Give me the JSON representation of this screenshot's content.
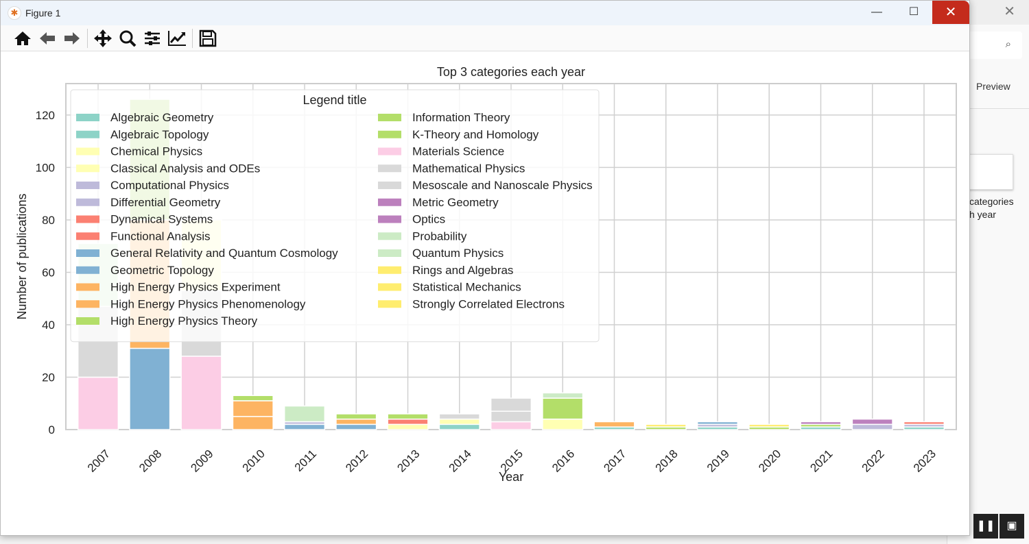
{
  "window": {
    "title": "Figure 1",
    "minimize": "—",
    "maximize": "☐",
    "close": "✕"
  },
  "background_window": {
    "preview_label": "Preview",
    "thumbnail_caption": "categories\nh year",
    "close": "✕",
    "search_icon": "⌕"
  },
  "toolbar": [
    {
      "name": "home-icon"
    },
    {
      "name": "back-arrow-icon"
    },
    {
      "name": "forward-arrow-icon"
    },
    {
      "name": "pan-icon"
    },
    {
      "name": "zoom-icon"
    },
    {
      "name": "configure-subplots-icon"
    },
    {
      "name": "edit-axis-icon"
    },
    {
      "name": "save-icon"
    }
  ],
  "chart_data": {
    "type": "bar",
    "stacked": true,
    "title": "Top 3 categories each year",
    "xlabel": "Year",
    "ylabel": "Number of publications",
    "ylim": [
      0,
      132
    ],
    "yticks": [
      0,
      20,
      40,
      60,
      80,
      100,
      120
    ],
    "grid": true,
    "categories": [
      "2007",
      "2008",
      "2009",
      "2010",
      "2011",
      "2012",
      "2013",
      "2014",
      "2015",
      "2016",
      "2017",
      "2018",
      "2019",
      "2020",
      "2021",
      "2022",
      "2023"
    ],
    "legend": {
      "title": "Legend title",
      "placement": "upper-left",
      "entries": [
        {
          "label": "Algebraic Geometry",
          "color": "#8dd3c7"
        },
        {
          "label": "Algebraic Topology",
          "color": "#8dd3c7"
        },
        {
          "label": "Chemical Physics",
          "color": "#ffffb3"
        },
        {
          "label": "Classical Analysis and ODEs",
          "color": "#ffffb3"
        },
        {
          "label": "Computational Physics",
          "color": "#bebada"
        },
        {
          "label": "Differential Geometry",
          "color": "#bebada"
        },
        {
          "label": "Dynamical Systems",
          "color": "#fb8072"
        },
        {
          "label": "Functional Analysis",
          "color": "#fb8072"
        },
        {
          "label": "General Relativity and Quantum Cosmology",
          "color": "#80b1d3"
        },
        {
          "label": "Geometric Topology",
          "color": "#80b1d3"
        },
        {
          "label": "High Energy Physics Experiment",
          "color": "#fdb462"
        },
        {
          "label": "High Energy Physics Phenomenology",
          "color": "#fdb462"
        },
        {
          "label": "High Energy Physics Theory",
          "color": "#b3de69"
        },
        {
          "label": "Information Theory",
          "color": "#b3de69"
        },
        {
          "label": "K-Theory and Homology",
          "color": "#b3de69"
        },
        {
          "label": "Materials Science",
          "color": "#fccde5"
        },
        {
          "label": "Mathematical Physics",
          "color": "#d9d9d9"
        },
        {
          "label": "Mesoscale and Nanoscale Physics",
          "color": "#d9d9d9"
        },
        {
          "label": "Metric Geometry",
          "color": "#bc80bd"
        },
        {
          "label": "Optics",
          "color": "#bc80bd"
        },
        {
          "label": "Probability",
          "color": "#ccebc5"
        },
        {
          "label": "Quantum Physics",
          "color": "#ccebc5"
        },
        {
          "label": "Rings and Algebras",
          "color": "#ffed6f"
        },
        {
          "label": "Statistical Mechanics",
          "color": "#ffed6f"
        },
        {
          "label": "Strongly Correlated Electrons",
          "color": "#ffed6f"
        }
      ]
    },
    "stacks": [
      [
        {
          "c": "#fccde5",
          "v": 20
        },
        {
          "c": "#d9d9d9",
          "v": 27
        },
        {
          "c": "#ccebc5",
          "v": 24
        }
      ],
      [
        {
          "c": "#80b1d3",
          "v": 31
        },
        {
          "c": "#fdb462",
          "v": 49
        },
        {
          "c": "#b3de69",
          "v": 46
        }
      ],
      [
        {
          "c": "#fccde5",
          "v": 28
        },
        {
          "c": "#d9d9d9",
          "v": 25
        },
        {
          "c": "#ffffb3",
          "v": 27
        }
      ],
      [
        {
          "c": "#fdb462",
          "v": 5
        },
        {
          "c": "#fdb462",
          "v": 6
        },
        {
          "c": "#b3de69",
          "v": 2
        }
      ],
      [
        {
          "c": "#80b1d3",
          "v": 2
        },
        {
          "c": "#bebada",
          "v": 1
        },
        {
          "c": "#ccebc5",
          "v": 6
        }
      ],
      [
        {
          "c": "#80b1d3",
          "v": 2
        },
        {
          "c": "#fdb462",
          "v": 2
        },
        {
          "c": "#b3de69",
          "v": 2
        }
      ],
      [
        {
          "c": "#ffffb3",
          "v": 2
        },
        {
          "c": "#fb8072",
          "v": 2
        },
        {
          "c": "#b3de69",
          "v": 2
        }
      ],
      [
        {
          "c": "#8dd3c7",
          "v": 2
        },
        {
          "c": "#ffffb3",
          "v": 2
        },
        {
          "c": "#d9d9d9",
          "v": 2
        }
      ],
      [
        {
          "c": "#fccde5",
          "v": 3
        },
        {
          "c": "#d9d9d9",
          "v": 4
        },
        {
          "c": "#d9d9d9",
          "v": 5
        }
      ],
      [
        {
          "c": "#ffffb3",
          "v": 4
        },
        {
          "c": "#b3de69",
          "v": 8
        },
        {
          "c": "#ccebc5",
          "v": 2
        }
      ],
      [
        {
          "c": "#8dd3c7",
          "v": 1
        },
        {
          "c": "#fdb462",
          "v": 2
        }
      ],
      [
        {
          "c": "#b3de69",
          "v": 1
        },
        {
          "c": "#ffed6f",
          "v": 1
        }
      ],
      [
        {
          "c": "#8dd3c7",
          "v": 1
        },
        {
          "c": "#bebada",
          "v": 1
        },
        {
          "c": "#80b1d3",
          "v": 1
        }
      ],
      [
        {
          "c": "#b3de69",
          "v": 1
        },
        {
          "c": "#ffed6f",
          "v": 1
        }
      ],
      [
        {
          "c": "#8dd3c7",
          "v": 1
        },
        {
          "c": "#b3de69",
          "v": 1
        },
        {
          "c": "#bc80bd",
          "v": 1
        }
      ],
      [
        {
          "c": "#bebada",
          "v": 2
        },
        {
          "c": "#bc80bd",
          "v": 2
        }
      ],
      [
        {
          "c": "#8dd3c7",
          "v": 1
        },
        {
          "c": "#bebada",
          "v": 1
        },
        {
          "c": "#fb8072",
          "v": 1
        }
      ]
    ]
  }
}
